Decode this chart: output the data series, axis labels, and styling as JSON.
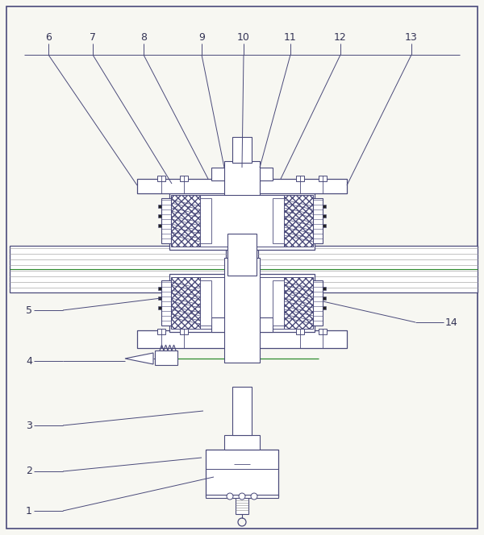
{
  "bg_color": "#f7f7f2",
  "lc": "#4a4a7a",
  "gc": "#2d8a2d",
  "fig_width": 6.0,
  "fig_height": 6.64,
  "note_color": "#333355",
  "fs": 9
}
